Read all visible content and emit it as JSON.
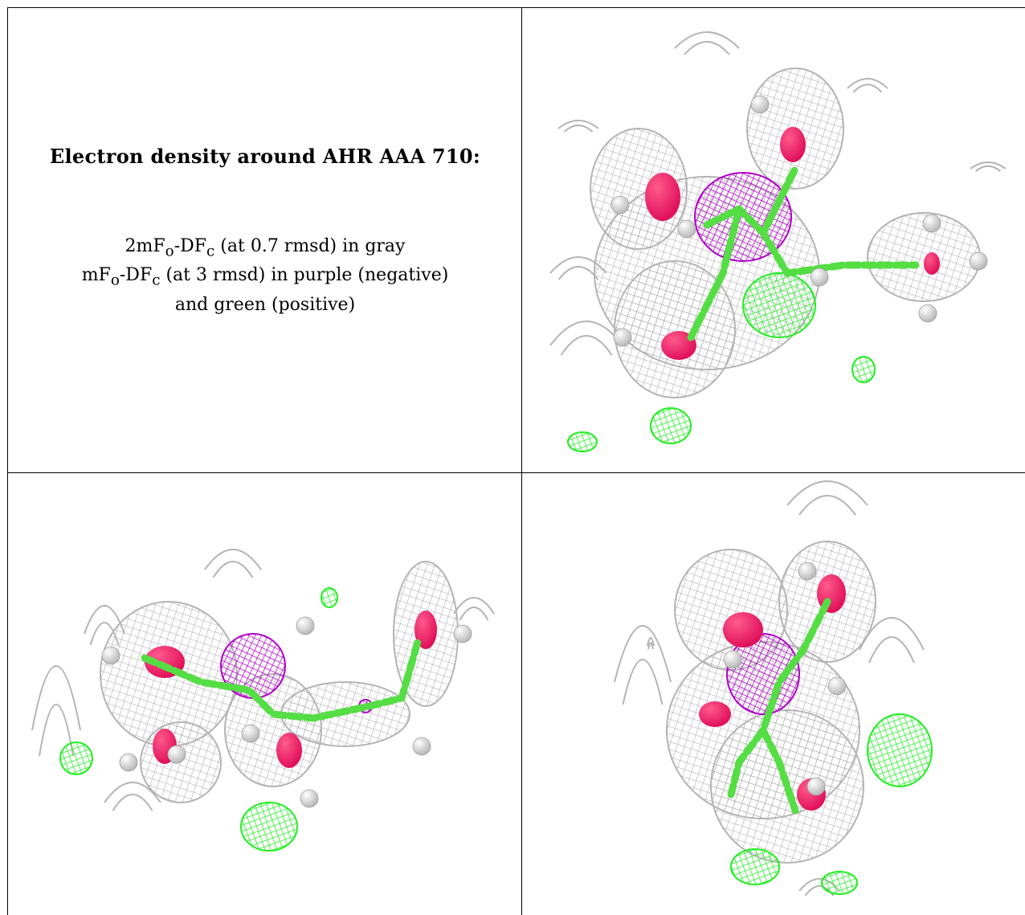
{
  "figure": {
    "title": "Electron density around AHR AAA 710:",
    "legend_lines": [
      {
        "pre": "2mF",
        "sub1": "o",
        "mid": "-DF",
        "sub2": "c",
        "post": " (at 0.7 rmsd) in gray"
      },
      {
        "pre": "mF",
        "sub1": "o",
        "mid": "-DF",
        "sub2": "c",
        "post": " (at 3 rmsd) in purple (negative)"
      },
      {
        "pre": "",
        "sub1": "",
        "mid": "",
        "sub2": "",
        "post": "and green (positive)"
      }
    ],
    "colors": {
      "mesh_2fofc": "#b4b4b4",
      "diff_negative": "#b000c8",
      "diff_positive": "#22ee22",
      "oxygen": "#e0105a",
      "hydrogen": "#e8e8e8",
      "bond": "#55dd44"
    },
    "panels": [
      {
        "name": "view-top-right"
      },
      {
        "name": "view-bottom-left"
      },
      {
        "name": "view-bottom-right"
      }
    ]
  }
}
